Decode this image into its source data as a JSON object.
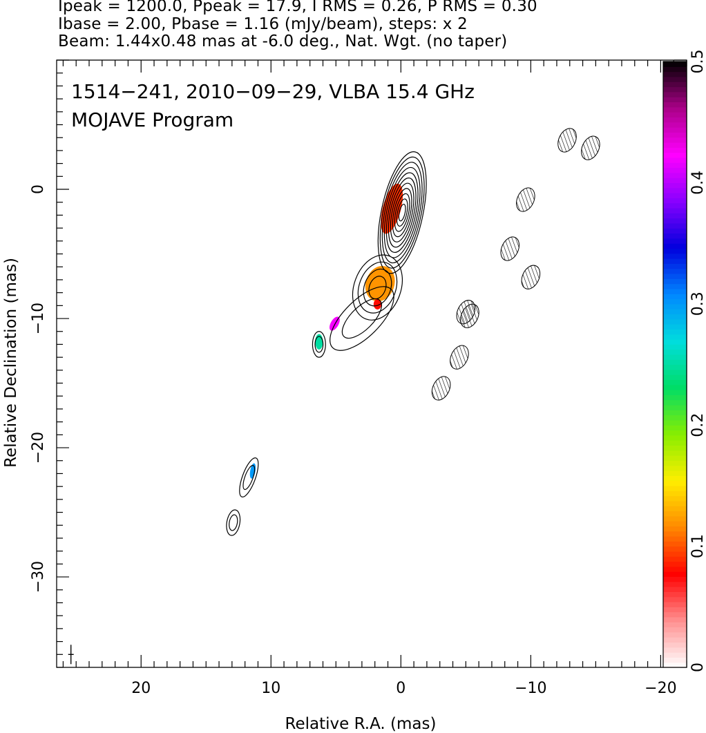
{
  "header": {
    "line1": "Ipeak = 1200.0, Ppeak = 17.9, I RMS = 0.26, P RMS = 0.30",
    "line2": "Ibase = 2.00, Pbase = 1.16 (mJy/beam), steps: x 2",
    "line3": "Beam: 1.44x0.48 mas at -6.0 deg., Nat. Wgt. (no taper)"
  },
  "chart_data": {
    "type": "heatmap",
    "title_line1": "1514−241, 2010−09−29, VLBA 15.4 GHz",
    "title_line2": "MOJAVE Program",
    "xlabel": "Relative R.A. (mas)",
    "ylabel": "Relative Declination (mas)",
    "xlim": [
      26.5,
      -22
    ],
    "ylim": [
      -37,
      10
    ],
    "x_ticks": [
      20,
      10,
      0,
      -10,
      -20
    ],
    "x_tick_labels": [
      "20",
      "10",
      "0",
      "−10",
      "−20"
    ],
    "y_ticks": [
      0,
      -10,
      -20,
      -30
    ],
    "y_tick_labels": [
      "0",
      "−10",
      "−20",
      "−30"
    ],
    "colorbar": {
      "range": [
        0,
        0.5
      ],
      "ticks": [
        0,
        0.1,
        0.2,
        0.3,
        0.4,
        0.5
      ],
      "tick_labels": [
        "0",
        "0.1",
        "0.2",
        "0.3",
        "0.4",
        "0.5"
      ],
      "colors": [
        "#ffffff",
        "#ff9090",
        "#ff0000",
        "#ff8800",
        "#ffee00",
        "#88ee00",
        "#00dd66",
        "#00dddd",
        "#0088ff",
        "#0000dd",
        "#8800ff",
        "#ff00ff",
        "#aa0088",
        "#000000"
      ]
    },
    "grid": false,
    "beam": {
      "major_mas": 1.44,
      "minor_mas": 0.48,
      "pa_deg": -6.0
    },
    "core_center": [
      0,
      0
    ],
    "left_panel_components": [
      {
        "x": -0.1,
        "y": -1.8,
        "a": 1.6,
        "b": 4.8,
        "rot": 12,
        "levels": 11
      },
      {
        "x": 1.8,
        "y": -7.6,
        "a": 1.8,
        "b": 2.6,
        "rot": 20,
        "levels": 4
      },
      {
        "x": 3.0,
        "y": -10.0,
        "a": 1.4,
        "b": 3.2,
        "rot": 45,
        "levels": 2
      },
      {
        "x": 6.3,
        "y": -12.0,
        "a": 0.5,
        "b": 1.0,
        "rot": 0,
        "levels": 2
      },
      {
        "x": 11.7,
        "y": -22.3,
        "a": 0.5,
        "b": 1.6,
        "rot": 20,
        "levels": 2
      },
      {
        "x": 12.9,
        "y": -25.8,
        "a": 0.5,
        "b": 1.0,
        "rot": 10,
        "levels": 2
      }
    ],
    "polarization_peaks": [
      {
        "x": 0.7,
        "y": -1.5,
        "value": 0.09,
        "a": 0.7,
        "b": 2.0,
        "rot": 15
      },
      {
        "x": 1.6,
        "y": -7.3,
        "value": 0.12,
        "a": 1.1,
        "b": 1.4,
        "rot": 20
      },
      {
        "x": 1.8,
        "y": -8.9,
        "value": 0.08,
        "a": 0.3,
        "b": 0.4,
        "rot": 0
      },
      {
        "x": 5.1,
        "y": -10.4,
        "value": 0.42,
        "a": 0.3,
        "b": 0.6,
        "rot": 30
      },
      {
        "x": 6.3,
        "y": -11.8,
        "value": 0.25,
        "a": 0.3,
        "b": 0.6,
        "rot": 0
      },
      {
        "x": 11.4,
        "y": -21.8,
        "value": 0.3,
        "a": 0.2,
        "b": 0.6,
        "rot": 10
      }
    ]
  }
}
